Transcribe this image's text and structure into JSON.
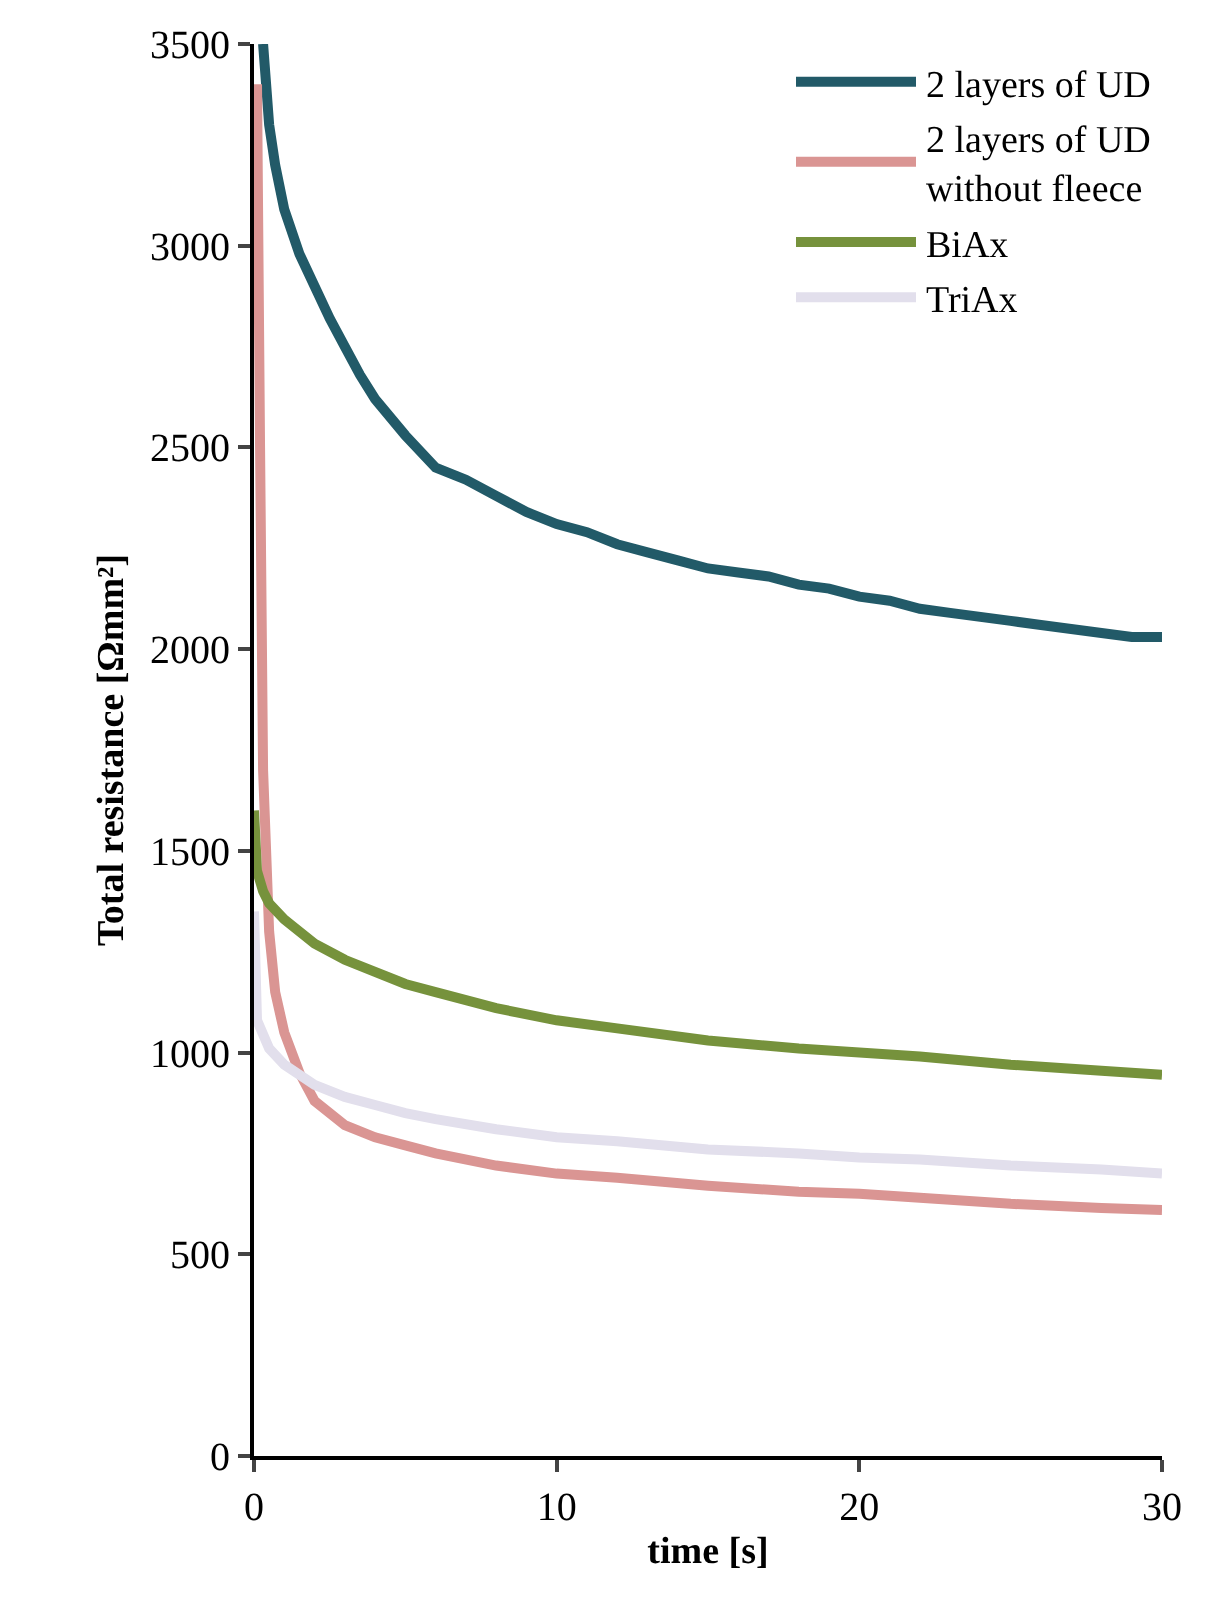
{
  "chart_data": {
    "type": "line",
    "xlabel": "time [s]",
    "ylabel": "Total resistance [Ωmm²]",
    "xlim": [
      0,
      30
    ],
    "xticks": [
      0,
      10,
      20,
      30
    ],
    "ylim": [
      0,
      3500
    ],
    "yticks": [
      0,
      500,
      1000,
      1500,
      2000,
      2500,
      3000,
      3500
    ],
    "legend": "top right",
    "marker": "none",
    "line_style": "solid",
    "series": [
      {
        "name": "2 layers of UD",
        "color": "#225a68",
        "x": [
          0.3,
          0.5,
          0.7,
          1,
          1.5,
          2,
          2.5,
          3,
          3.5,
          4,
          5,
          6,
          7,
          8,
          9,
          10,
          11,
          12,
          13,
          14,
          15,
          16,
          17,
          18,
          19,
          20,
          21,
          22,
          23,
          24,
          25,
          26,
          27,
          28,
          29,
          30
        ],
        "values": [
          3500,
          3300,
          3200,
          3090,
          2980,
          2900,
          2820,
          2750,
          2680,
          2620,
          2530,
          2450,
          2420,
          2380,
          2340,
          2310,
          2290,
          2260,
          2240,
          2220,
          2200,
          2190,
          2180,
          2160,
          2150,
          2130,
          2120,
          2100,
          2090,
          2080,
          2070,
          2060,
          2050,
          2040,
          2030,
          2030
        ]
      },
      {
        "name": "2 layers of UD without fleece",
        "color": "#da9593",
        "x": [
          0.1,
          0.2,
          0.3,
          0.5,
          0.7,
          1,
          1.5,
          2,
          3,
          4,
          5,
          6,
          8,
          10,
          12,
          15,
          18,
          20,
          22,
          25,
          28,
          30
        ],
        "values": [
          3400,
          2500,
          1700,
          1300,
          1150,
          1050,
          950,
          880,
          820,
          790,
          770,
          750,
          720,
          700,
          690,
          670,
          655,
          650,
          640,
          625,
          615,
          610
        ]
      },
      {
        "name": "BiAx",
        "color": "#76923c",
        "x": [
          0,
          0.1,
          0.3,
          0.5,
          1,
          2,
          3,
          4,
          5,
          6,
          8,
          10,
          12,
          15,
          18,
          20,
          22,
          25,
          28,
          30
        ],
        "values": [
          1600,
          1450,
          1400,
          1370,
          1330,
          1270,
          1230,
          1200,
          1170,
          1150,
          1110,
          1080,
          1060,
          1030,
          1010,
          1000,
          990,
          970,
          955,
          945
        ]
      },
      {
        "name": "TriAx",
        "color": "#e2dfec",
        "x": [
          0,
          0.1,
          0.5,
          1,
          2,
          3,
          4,
          5,
          6,
          8,
          10,
          12,
          15,
          18,
          20,
          22,
          25,
          28,
          30
        ],
        "values": [
          1350,
          1080,
          1010,
          970,
          920,
          890,
          870,
          850,
          835,
          810,
          790,
          780,
          760,
          750,
          740,
          735,
          720,
          710,
          700
        ]
      }
    ]
  }
}
